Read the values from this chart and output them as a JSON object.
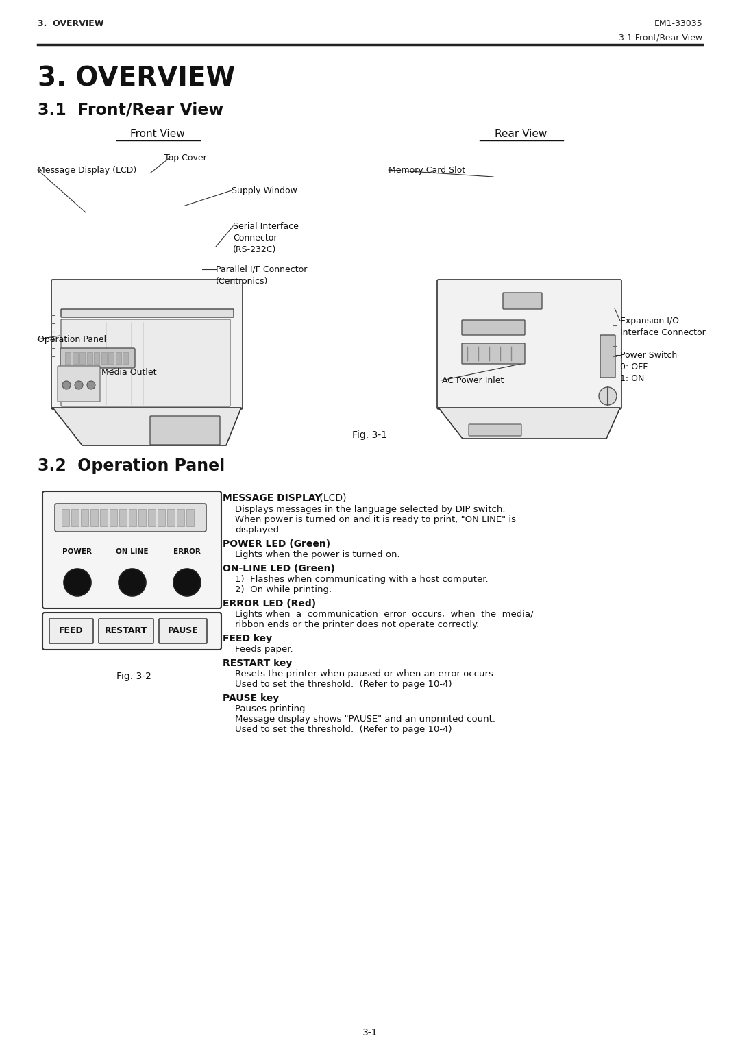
{
  "bg_color": "#ffffff",
  "header_left": "3.  OVERVIEW",
  "header_right": "EM1-33035",
  "subheader_right": "3.1 Front/Rear View",
  "main_title": "3. OVERVIEW",
  "section1_title": "3.1  Front/Rear View",
  "front_view_label": "Front View",
  "rear_view_label": "Rear View",
  "fig1_caption": "Fig. 3-1",
  "section2_title": "3.2  Operation Panel",
  "fig2_caption": "Fig. 3-2",
  "footer_center": "3-1",
  "op_panel_labels": {
    "power": "POWER",
    "online": "ON LINE",
    "error": "ERROR"
  },
  "op_buttons": [
    "FEED",
    "RESTART",
    "PAUSE"
  ]
}
